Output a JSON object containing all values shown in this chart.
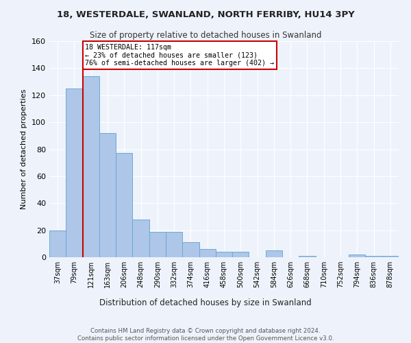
{
  "title1": "18, WESTERDALE, SWANLAND, NORTH FERRIBY, HU14 3PY",
  "title2": "Size of property relative to detached houses in Swanland",
  "xlabel": "Distribution of detached houses by size in Swanland",
  "ylabel": "Number of detached properties",
  "footer1": "Contains HM Land Registry data © Crown copyright and database right 2024.",
  "footer2": "Contains public sector information licensed under the Open Government Licence v3.0.",
  "categories": [
    "37sqm",
    "79sqm",
    "121sqm",
    "163sqm",
    "206sqm",
    "248sqm",
    "290sqm",
    "332sqm",
    "374sqm",
    "416sqm",
    "458sqm",
    "500sqm",
    "542sqm",
    "584sqm",
    "626sqm",
    "668sqm",
    "710sqm",
    "752sqm",
    "794sqm",
    "836sqm",
    "878sqm"
  ],
  "values": [
    20,
    125,
    134,
    92,
    77,
    28,
    19,
    19,
    11,
    6,
    4,
    4,
    0,
    5,
    0,
    1,
    0,
    0,
    2,
    1,
    1
  ],
  "bar_color": "#aec6e8",
  "bar_edge_color": "#6aaad4",
  "background_color": "#eef3fb",
  "annotation_text_line1": "18 WESTERDALE: 117sqm",
  "annotation_text_line2": "← 23% of detached houses are smaller (123)",
  "annotation_text_line3": "76% of semi-detached houses are larger (402) →",
  "annotation_box_color": "#ffffff",
  "annotation_box_edge_color": "#cc0000",
  "vline_color": "#cc0000",
  "vline_x_index": 2,
  "ylim": [
    0,
    160
  ],
  "yticks": [
    0,
    20,
    40,
    60,
    80,
    100,
    120,
    140,
    160
  ]
}
